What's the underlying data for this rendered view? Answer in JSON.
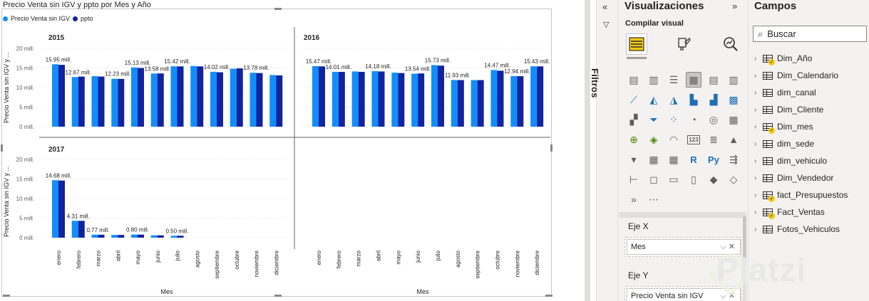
{
  "visual": {
    "title": "Precio Venta sin IGV y ppto por Mes y Año",
    "legend": [
      {
        "name": "Precio Venta sin IGV",
        "color": "#118dff"
      },
      {
        "name": "ppto",
        "color": "#12239e"
      }
    ]
  },
  "chart_data": {
    "type": "bar",
    "layout": "small-multiples",
    "categories": [
      "enero",
      "febrero",
      "marzo",
      "abril",
      "mayo",
      "junio",
      "julio",
      "agosto",
      "septiembre",
      "octubre",
      "noviembre",
      "diciembre"
    ],
    "ylabel": "Precio Venta sin IGV y ...",
    "xlabel": "Mes",
    "ylim": [
      0,
      20
    ],
    "yticks": [
      "0 mill.",
      "5 mill.",
      "10 mill.",
      "15 mill.",
      "20 mill."
    ],
    "panels": [
      {
        "year": "2015",
        "series": [
          {
            "name": "Precio Venta sin IGV",
            "values": [
              15.95,
              12.67,
              12.9,
              12.23,
              15.13,
              13.58,
              15.42,
              15.5,
              14.02,
              14.8,
              13.78,
              13.2
            ]
          },
          {
            "name": "ppto",
            "values": [
              15.8,
              12.8,
              12.8,
              12.2,
              15.0,
              13.6,
              15.4,
              15.4,
              13.9,
              14.9,
              13.7,
              13.1
            ]
          }
        ],
        "labels": [
          "15.95 mill.",
          "12.67 mill.",
          "",
          "12.23 mill.",
          "15.13 mill.",
          "13.58 mill.",
          "15.42 mill.",
          "",
          "14.02 mill.",
          "",
          "13.78 mill.",
          ""
        ]
      },
      {
        "year": "2016",
        "series": [
          {
            "name": "Precio Venta sin IGV",
            "values": [
              15.47,
              14.01,
              14.1,
              14.18,
              13.8,
              13.54,
              15.73,
              11.93,
              11.9,
              14.47,
              12.94,
              15.43
            ]
          },
          {
            "name": "ppto",
            "values": [
              15.4,
              14.0,
              14.0,
              14.1,
              13.7,
              13.6,
              15.6,
              11.9,
              11.9,
              14.3,
              12.9,
              15.4
            ]
          }
        ],
        "labels": [
          "15.47 mill.",
          "14.01 mill.",
          "",
          "14.18 mill.",
          "",
          "13.54 mill.",
          "15.73 mill.",
          "11.93 mill.",
          "",
          "14.47 mill.",
          "12.94 mill.",
          "15.43 mill."
        ]
      },
      {
        "year": "2017",
        "series": [
          {
            "name": "Precio Venta sin IGV",
            "values": [
              14.68,
              4.31,
              0.77,
              0.7,
              0.8,
              0.6,
              0.5,
              0,
              0,
              0,
              0,
              0
            ]
          },
          {
            "name": "ppto",
            "values": [
              14.6,
              4.3,
              0.75,
              0.7,
              0.78,
              0.6,
              0.5,
              0,
              0,
              0,
              0,
              0
            ]
          }
        ],
        "labels": [
          "14.68 mill.",
          "4.31 mill.",
          "0.77 mill.",
          "",
          "0.80 mill.",
          "",
          "0.50 mill.",
          "",
          "",
          "",
          "",
          ""
        ]
      }
    ]
  },
  "filters": {
    "label": "Filtros"
  },
  "visualizations": {
    "title": "Visualizaciones",
    "build_label": "Compilar visual",
    "wells": [
      {
        "label": "Eje X",
        "field": "Mes"
      },
      {
        "label": "Eje Y",
        "field": "Precio Venta sin IGV"
      }
    ]
  },
  "fields": {
    "title": "Campos",
    "search_placeholder": "Buscar",
    "tables": [
      {
        "name": "Dim_Año",
        "checked": true
      },
      {
        "name": "Dim_Calendario",
        "checked": false
      },
      {
        "name": "dim_canal",
        "checked": false
      },
      {
        "name": "Dim_Cliente",
        "checked": false
      },
      {
        "name": "Dim_mes",
        "checked": true
      },
      {
        "name": "dim_sede",
        "checked": false
      },
      {
        "name": "dim_vehiculo",
        "checked": false
      },
      {
        "name": "Dim_Vendedor",
        "checked": false
      },
      {
        "name": "fact_Presupuestos",
        "checked": true
      },
      {
        "name": "Fact_Ventas",
        "checked": true
      },
      {
        "name": "Fotos_Vehiculos",
        "checked": false
      }
    ]
  },
  "watermark": "Platzi"
}
